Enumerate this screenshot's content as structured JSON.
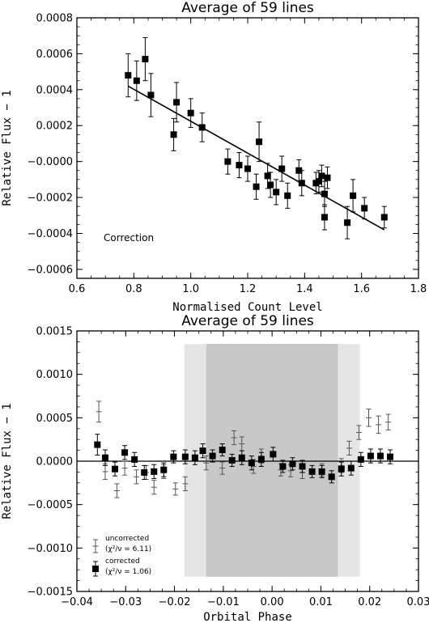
{
  "chart_data": [
    {
      "type": "scatter",
      "title": "Average of 59 lines",
      "xlabel": "Normalised Count Level",
      "ylabel": "Relative Flux − 1",
      "xlim": [
        0.6,
        1.8
      ],
      "ylim": [
        -0.00065,
        0.0008
      ],
      "xticks": [
        "0.6",
        "0.8",
        "1.0",
        "1.2",
        "1.4",
        "1.6",
        "1.8"
      ],
      "yticks": [
        "−0.0006",
        "−0.0004",
        "−0.0002",
        "−0.0000",
        "0.0002",
        "0.0004",
        "0.0006",
        "0.0008"
      ],
      "annotation": "Correction",
      "fit_line": {
        "x": [
          0.78,
          1.68
        ],
        "y": [
          0.00042,
          -0.00038
        ]
      },
      "series": [
        {
          "marker": "filled-square",
          "points": [
            {
              "x": 0.78,
              "y": 0.00048,
              "err": 0.00012
            },
            {
              "x": 0.81,
              "y": 0.00045,
              "err": 0.00011
            },
            {
              "x": 0.84,
              "y": 0.00057,
              "err": 0.00012
            },
            {
              "x": 0.86,
              "y": 0.00037,
              "err": 0.00012
            },
            {
              "x": 0.94,
              "y": 0.00015,
              "err": 9e-05
            },
            {
              "x": 0.95,
              "y": 0.00033,
              "err": 0.00011
            },
            {
              "x": 1.0,
              "y": 0.00027,
              "err": 8e-05
            },
            {
              "x": 1.04,
              "y": 0.00019,
              "err": 8e-05
            },
            {
              "x": 1.13,
              "y": 0.0,
              "err": 7e-05
            },
            {
              "x": 1.17,
              "y": -2e-05,
              "err": 7e-05
            },
            {
              "x": 1.2,
              "y": -4e-05,
              "err": 7e-05
            },
            {
              "x": 1.23,
              "y": -0.00014,
              "err": 7e-05
            },
            {
              "x": 1.24,
              "y": 0.00011,
              "err": 0.00011
            },
            {
              "x": 1.27,
              "y": -8e-05,
              "err": 7e-05
            },
            {
              "x": 1.28,
              "y": -0.00013,
              "err": 7e-05
            },
            {
              "x": 1.3,
              "y": -0.00017,
              "err": 7e-05
            },
            {
              "x": 1.32,
              "y": -4e-05,
              "err": 7e-05
            },
            {
              "x": 1.34,
              "y": -0.00019,
              "err": 7e-05
            },
            {
              "x": 1.38,
              "y": -5e-05,
              "err": 6e-05
            },
            {
              "x": 1.39,
              "y": -0.00012,
              "err": 7e-05
            },
            {
              "x": 1.44,
              "y": -0.00012,
              "err": 6e-05
            },
            {
              "x": 1.45,
              "y": -0.00011,
              "err": 6e-05
            },
            {
              "x": 1.46,
              "y": -8e-05,
              "err": 6e-05
            },
            {
              "x": 1.47,
              "y": -0.00018,
              "err": 7e-05
            },
            {
              "x": 1.47,
              "y": -0.00031,
              "err": 7e-05
            },
            {
              "x": 1.48,
              "y": -9e-05,
              "err": 6e-05
            },
            {
              "x": 1.55,
              "y": -0.00034,
              "err": 9e-05
            },
            {
              "x": 1.57,
              "y": -0.00019,
              "err": 9e-05
            },
            {
              "x": 1.61,
              "y": -0.00026,
              "err": 6e-05
            },
            {
              "x": 1.68,
              "y": -0.00031,
              "err": 6e-05
            }
          ]
        }
      ]
    },
    {
      "type": "scatter",
      "title": "Average of 59 lines",
      "xlabel": "Orbital Phase",
      "ylabel": "Relative Flux − 1",
      "xlim": [
        -0.04,
        0.03
      ],
      "ylim": [
        -0.0015,
        0.0015
      ],
      "xticks": [
        "−0.04",
        "−0.03",
        "−0.02",
        "−0.01",
        "0.00",
        "0.01",
        "0.02",
        "0.03"
      ],
      "yticks": [
        "−0.0015",
        "−0.0010",
        "−0.0005",
        "0.0000",
        "0.0005",
        "0.0010",
        "0.0015"
      ],
      "shaded_regions": [
        {
          "x": [
            -0.018,
            0.018
          ],
          "y": [
            -0.00133,
            0.00135
          ],
          "shade": "light",
          "color": "#e5e5e5"
        },
        {
          "x": [
            -0.0135,
            0.0135
          ],
          "y": [
            -0.00133,
            0.00135
          ],
          "shade": "dark",
          "color": "#c8c8c8"
        }
      ],
      "zero_line": 0,
      "legend": {
        "position": "bottom-left",
        "uncorrected_label": "uncorrected",
        "uncorrected_stat": "(χ²/ν = 6.11)",
        "corrected_label": "corrected",
        "corrected_stat": "(χ²/ν = 1.06)"
      },
      "series": [
        {
          "name": "uncorrected",
          "marker": "plus",
          "color": "#555555",
          "points": [
            {
              "x": -0.0355,
              "y": 0.00057,
              "err": 0.00012
            },
            {
              "x": -0.0342,
              "y": -0.00012,
              "err": 9e-05
            },
            {
              "x": -0.0318,
              "y": -0.00034,
              "err": 8e-05
            },
            {
              "x": -0.0302,
              "y": -8e-05,
              "err": 8e-05
            },
            {
              "x": -0.0278,
              "y": -0.00018,
              "err": 8e-05
            },
            {
              "x": -0.0258,
              "y": -0.00013,
              "err": 8e-05
            },
            {
              "x": -0.0242,
              "y": -0.0003,
              "err": 8e-05
            },
            {
              "x": -0.0222,
              "y": -0.00012,
              "err": 8e-05
            },
            {
              "x": -0.0198,
              "y": -0.00032,
              "err": 7e-05
            },
            {
              "x": -0.0178,
              "y": -0.00026,
              "err": 8e-05
            },
            {
              "x": -0.0135,
              "y": -2e-05,
              "err": 8e-05
            },
            {
              "x": -0.0102,
              "y": -8e-05,
              "err": 7e-05
            },
            {
              "x": -0.0078,
              "y": 0.00027,
              "err": 8e-05
            },
            {
              "x": -0.0062,
              "y": 0.0002,
              "err": 8e-05
            },
            {
              "x": -0.0038,
              "y": -6e-05,
              "err": 8e-05
            },
            {
              "x": -0.0022,
              "y": 6e-05,
              "err": 8e-05
            },
            {
              "x": 0.0018,
              "y": -0.0001,
              "err": 7e-05
            },
            {
              "x": 0.0038,
              "y": -0.00011,
              "err": 7e-05
            },
            {
              "x": 0.0062,
              "y": -0.00013,
              "err": 7e-05
            },
            {
              "x": 0.0102,
              "y": -0.0001,
              "err": 7e-05
            },
            {
              "x": 0.0142,
              "y": -5e-05,
              "err": 8e-05
            },
            {
              "x": 0.0158,
              "y": 0.00015,
              "err": 8e-05
            },
            {
              "x": 0.0178,
              "y": 0.00033,
              "err": 8e-05
            },
            {
              "x": 0.0198,
              "y": 0.0005,
              "err": 0.0001
            },
            {
              "x": 0.0218,
              "y": 0.00042,
              "err": 0.0001
            },
            {
              "x": 0.0238,
              "y": 0.00045,
              "err": 9e-05
            }
          ]
        },
        {
          "name": "corrected",
          "marker": "filled-square",
          "color": "#000000",
          "points": [
            {
              "x": -0.0358,
              "y": 0.00019,
              "err": 0.00012
            },
            {
              "x": -0.0342,
              "y": 4e-05,
              "err": 9e-05
            },
            {
              "x": -0.0322,
              "y": -9e-05,
              "err": 8e-05
            },
            {
              "x": -0.0302,
              "y": 0.0001,
              "err": 8e-05
            },
            {
              "x": -0.0282,
              "y": 2e-05,
              "err": 8e-05
            },
            {
              "x": -0.0262,
              "y": -0.00013,
              "err": 8e-05
            },
            {
              "x": -0.0242,
              "y": -0.00012,
              "err": 8e-05
            },
            {
              "x": -0.0222,
              "y": -0.0001,
              "err": 8e-05
            },
            {
              "x": -0.0202,
              "y": 5e-05,
              "err": 7e-05
            },
            {
              "x": -0.0178,
              "y": 5e-05,
              "err": 8e-05
            },
            {
              "x": -0.0158,
              "y": 4e-05,
              "err": 8e-05
            },
            {
              "x": -0.0142,
              "y": 0.00012,
              "err": 8e-05
            },
            {
              "x": -0.0122,
              "y": 6e-05,
              "err": 7e-05
            },
            {
              "x": -0.0102,
              "y": 0.00013,
              "err": 7e-05
            },
            {
              "x": -0.0082,
              "y": 1e-05,
              "err": 7e-05
            },
            {
              "x": -0.0062,
              "y": 4e-05,
              "err": 8e-05
            },
            {
              "x": -0.0042,
              "y": -2e-05,
              "err": 8e-05
            },
            {
              "x": -0.0022,
              "y": 2e-05,
              "err": 8e-05
            },
            {
              "x": 0.0002,
              "y": 8e-05,
              "err": 8e-05
            },
            {
              "x": 0.0022,
              "y": -6e-05,
              "err": 7e-05
            },
            {
              "x": 0.0042,
              "y": -3e-05,
              "err": 7e-05
            },
            {
              "x": 0.0062,
              "y": -6e-05,
              "err": 7e-05
            },
            {
              "x": 0.0082,
              "y": -0.00012,
              "err": 7e-05
            },
            {
              "x": 0.0102,
              "y": -0.00012,
              "err": 7e-05
            },
            {
              "x": 0.0122,
              "y": -0.00018,
              "err": 7e-05
            },
            {
              "x": 0.0142,
              "y": -9e-05,
              "err": 8e-05
            },
            {
              "x": 0.0162,
              "y": -8e-05,
              "err": 8e-05
            },
            {
              "x": 0.0182,
              "y": 2e-05,
              "err": 8e-05
            },
            {
              "x": 0.0202,
              "y": 6e-05,
              "err": 8e-05
            },
            {
              "x": 0.0222,
              "y": 6e-05,
              "err": 8e-05
            },
            {
              "x": 0.0242,
              "y": 5e-05,
              "err": 8e-05
            }
          ]
        }
      ]
    }
  ]
}
